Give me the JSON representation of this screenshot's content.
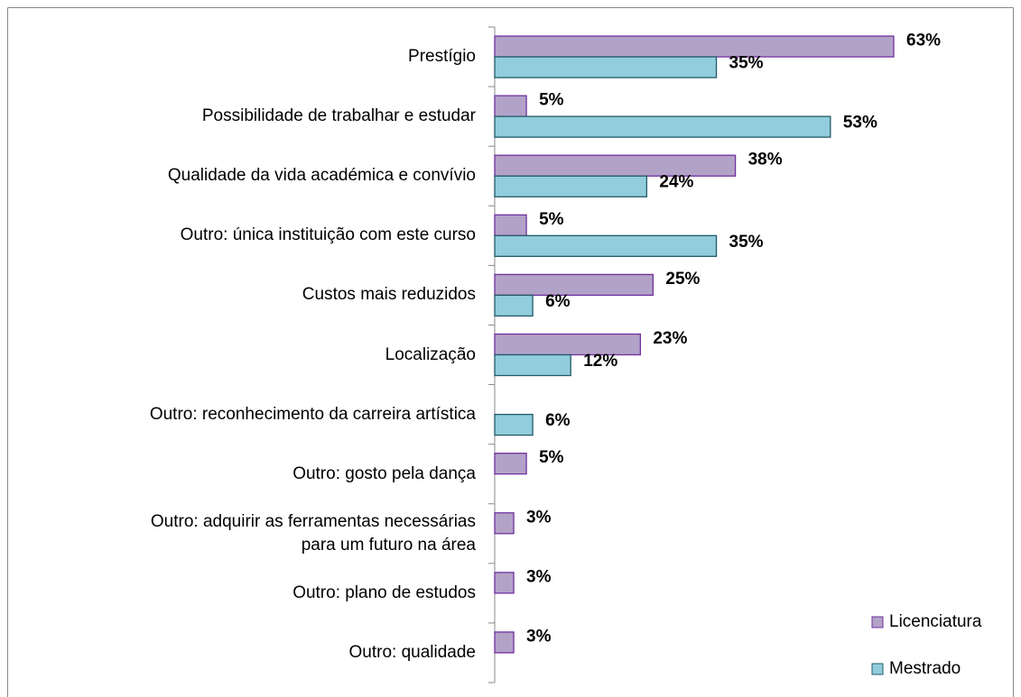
{
  "chart_data": {
    "type": "bar",
    "orientation": "horizontal",
    "categories": [
      "Prestígio",
      "Possibilidade de trabalhar e estudar",
      "Qualidade da vida académica e convívio",
      "Outro: única instituição com este curso",
      "Custos mais reduzidos",
      "Localização",
      "Outro: reconhecimento da carreira artística",
      "Outro: gosto pela dança",
      "Outro: adquirir as ferramentas necessárias\npara um futuro na área",
      "Outro: plano de estudos",
      "Outro: qualidade"
    ],
    "series": [
      {
        "name": "Licenciatura",
        "color": "#b3a2c7",
        "edge_color": "#7030a0",
        "values": [
          63,
          5,
          38,
          5,
          25,
          23,
          null,
          5,
          3,
          3,
          3
        ],
        "value_labels": [
          "63%",
          "5%",
          "38%",
          "5%",
          "25%",
          "23%",
          null,
          "5%",
          "3%",
          "3%",
          "3%"
        ]
      },
      {
        "name": "Mestrado",
        "color": "#92cddc",
        "edge_color": "#215968",
        "values": [
          35,
          53,
          24,
          35,
          6,
          12,
          6,
          null,
          null,
          null,
          null
        ],
        "value_labels": [
          "35%",
          "53%",
          "24%",
          "35%",
          "6%",
          "12%",
          "6%",
          null,
          null,
          null,
          null
        ]
      }
    ],
    "legend": "lower right"
  }
}
